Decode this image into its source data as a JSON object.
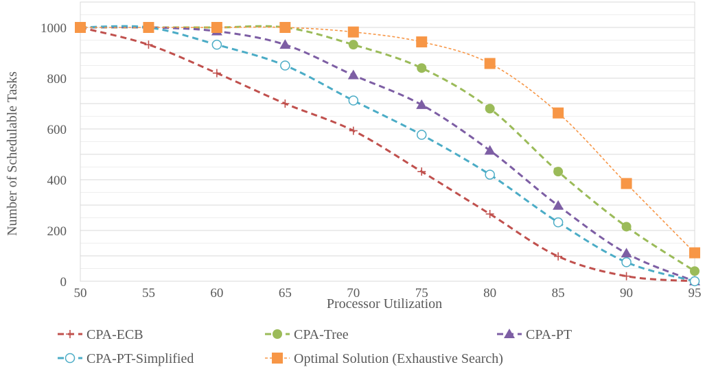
{
  "chart_data": {
    "type": "line",
    "xlabel": "Processor Utilization",
    "ylabel": "Number of Schedulable Tasks",
    "x": [
      50,
      55,
      60,
      65,
      70,
      75,
      80,
      85,
      90,
      95
    ],
    "xlim": [
      50,
      95
    ],
    "ylim": [
      0,
      1100
    ],
    "yticks": [
      0,
      200,
      400,
      600,
      800,
      1000
    ],
    "grid": true,
    "legend_position": "bottom",
    "series": [
      {
        "name": "CPA-ECB",
        "marker": "plus",
        "color": "#c0504d",
        "values": [
          1000,
          932,
          820,
          700,
          593,
          432,
          265,
          98,
          20,
          0
        ]
      },
      {
        "name": "CPA-Tree",
        "marker": "circle",
        "color": "#9bbb59",
        "values": [
          1000,
          1000,
          1000,
          1000,
          932,
          840,
          680,
          432,
          215,
          40
        ]
      },
      {
        "name": "CPA-PT",
        "marker": "triangle",
        "color": "#7d5ea4",
        "values": [
          1000,
          1000,
          985,
          932,
          812,
          695,
          515,
          298,
          110,
          0
        ]
      },
      {
        "name": "CPA-PT-Simplified",
        "marker": "open-circle",
        "color": "#4bacc6",
        "values": [
          1000,
          1000,
          932,
          850,
          712,
          577,
          420,
          232,
          75,
          0
        ]
      },
      {
        "name": "Optimal Solution (Exhaustive Search)",
        "marker": "square",
        "color": "#f79646",
        "values": [
          1000,
          1000,
          1000,
          1000,
          982,
          943,
          858,
          663,
          385,
          112
        ]
      }
    ]
  }
}
